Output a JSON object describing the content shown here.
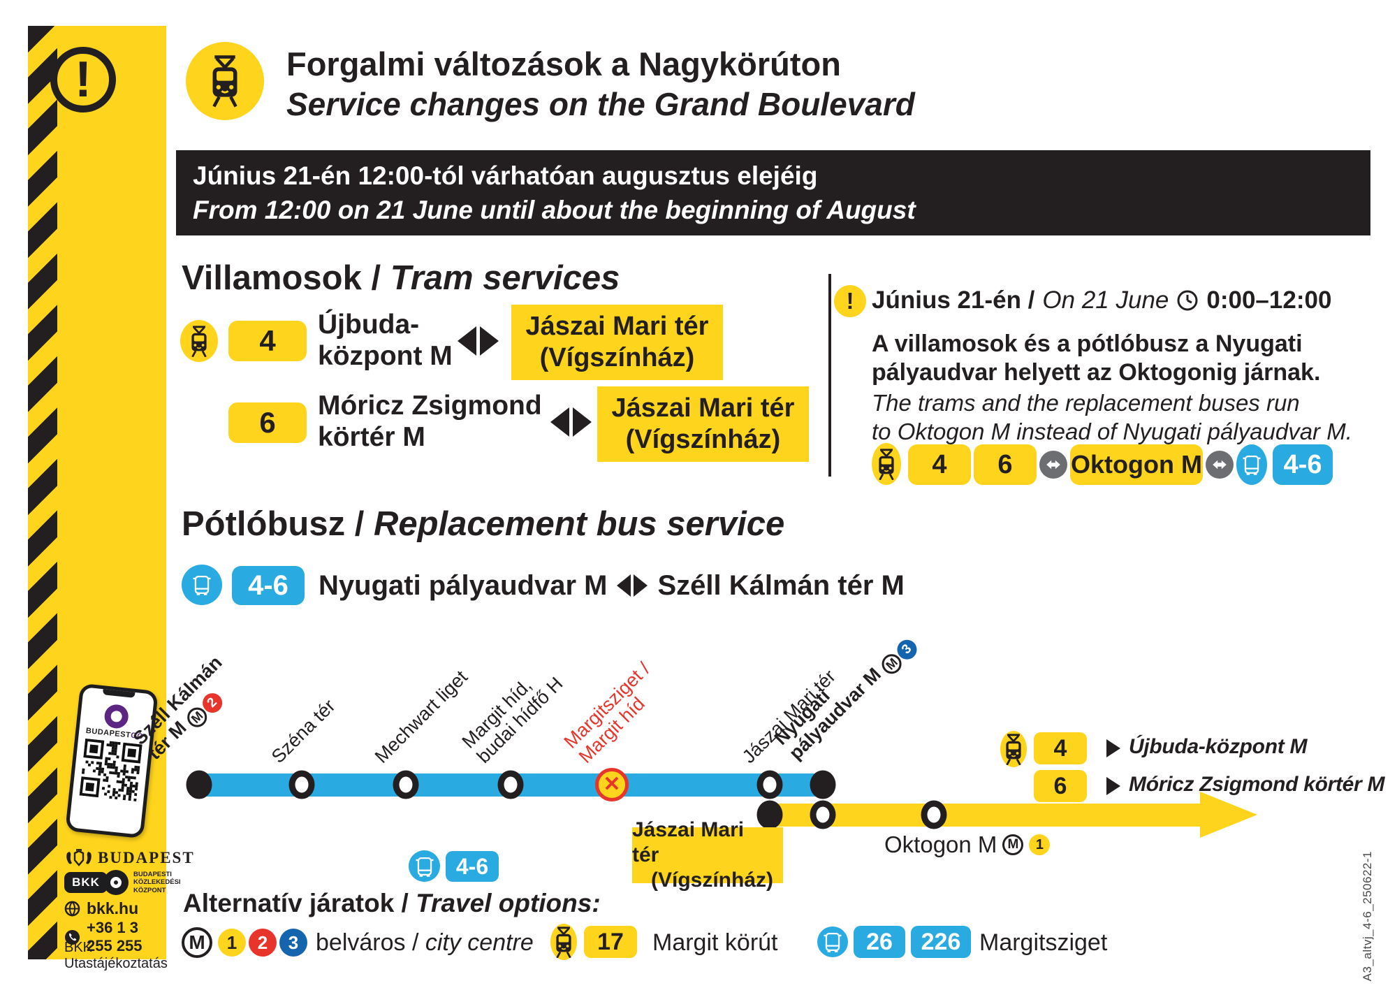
{
  "header": {
    "title_hu": "Forgalmi változások a Nagykörúton",
    "title_en": "Service changes on the Grand Boulevard"
  },
  "banner": {
    "line_hu": "Június 21-én 12:00-tól várhatóan augusztus elejéig",
    "line_en": "From 12:00 on 21 June until about the beginning of August"
  },
  "tram_section": {
    "heading_hu": "Villamosok /",
    "heading_en": "Tram services",
    "route4": {
      "badge": "4",
      "from1": "Újbuda-",
      "from2": "központ M",
      "to1": "Jászai Mari tér",
      "to2": "(Vígszínház)"
    },
    "route6": {
      "badge": "6",
      "from1": "Móricz Zsigmond",
      "from2": "körtér M",
      "to1": "Jászai Mari tér",
      "to2": "(Vígszínház)"
    }
  },
  "notice": {
    "warning_glyph": "!",
    "date_hu": "Június 21-én /",
    "date_en": "On 21 June",
    "time": "0:00–12:00",
    "hu1": "A villamosok és a pótlóbusz a Nyugati",
    "hu2": "pályaudvar helyett az Oktogonig járnak.",
    "en1": "The trams and the replacement buses run",
    "en2": "to Oktogon M instead of Nyugati pályaudvar M.",
    "tram4": "4",
    "tram6": "6",
    "stop_badge": "Oktogon M",
    "bus_badge": "4-6"
  },
  "bus_section": {
    "heading_hu": "Pótlóbusz /",
    "heading_en": "Replacement bus service",
    "badge": "4-6",
    "from": "Nyugati pályaudvar M",
    "to": "Széll Kálmán tér M"
  },
  "map": {
    "bus_badge": "4-6",
    "m_glyph": "M",
    "stops": {
      "szell1": "Széll Kálmán",
      "szell2": "tér M",
      "szell_metro": "2",
      "szena": "Széna tér",
      "mechwart": "Mechwart liget",
      "margithid1": "Margit híd,",
      "margithid2": "budai hídfő H",
      "margitsziget1": "Margitsziget /",
      "margitsziget2": "Margit híd",
      "jaszai": "Jászai Mari tér",
      "nyugati1": "Nyugati",
      "nyugati2": "pályaudvar M",
      "nyugati_metro": "3"
    },
    "jaszai_box1": "Jászai Mari tér",
    "jaszai_box2": "(Vígszínház)",
    "oktogon_label": "Oktogon M",
    "oktogon_metro": "1",
    "dest4_badge": "4",
    "dest4_label": "Újbuda-központ M",
    "dest6_badge": "6",
    "dest6_label": "Móricz Zsigmond körtér M"
  },
  "alternatives": {
    "heading_hu": "Alternatív járatok /",
    "heading_en": "Travel options:",
    "metro_m": "M",
    "m1": "1",
    "m2": "2",
    "m3": "3",
    "metro_dest_hu": "belváros /",
    "metro_dest_en": "city centre",
    "tram_badge": "17",
    "tram_dest": "Margit körút",
    "bus_badge1": "26",
    "bus_badge2": "226",
    "bus_dest": "Margitsziget"
  },
  "sidebar": {
    "warning_glyph": "!",
    "app_name_1": "BUDAPEST",
    "app_name_2": "GO",
    "budapest_logo": "BUDAPEST",
    "bkk": "BKK",
    "bkk_line1": "BUDAPESTI",
    "bkk_line2": "KÖZLEKEDÉSI",
    "bkk_line3": "KÖZPONT",
    "web": "bkk.hu",
    "phone": "+36 1 3 255 255",
    "caption": "BKK Utastájékoztatás"
  },
  "footer": {
    "code": "A3_altvj_4-6_250622-1"
  },
  "colors": {
    "yellow": "#FFD41C",
    "blue": "#29ABE2",
    "black": "#231F20",
    "red": "#E8352C",
    "gray": "#6D6E71",
    "m3_blue": "#1565AE",
    "purple": "#5C2483"
  }
}
